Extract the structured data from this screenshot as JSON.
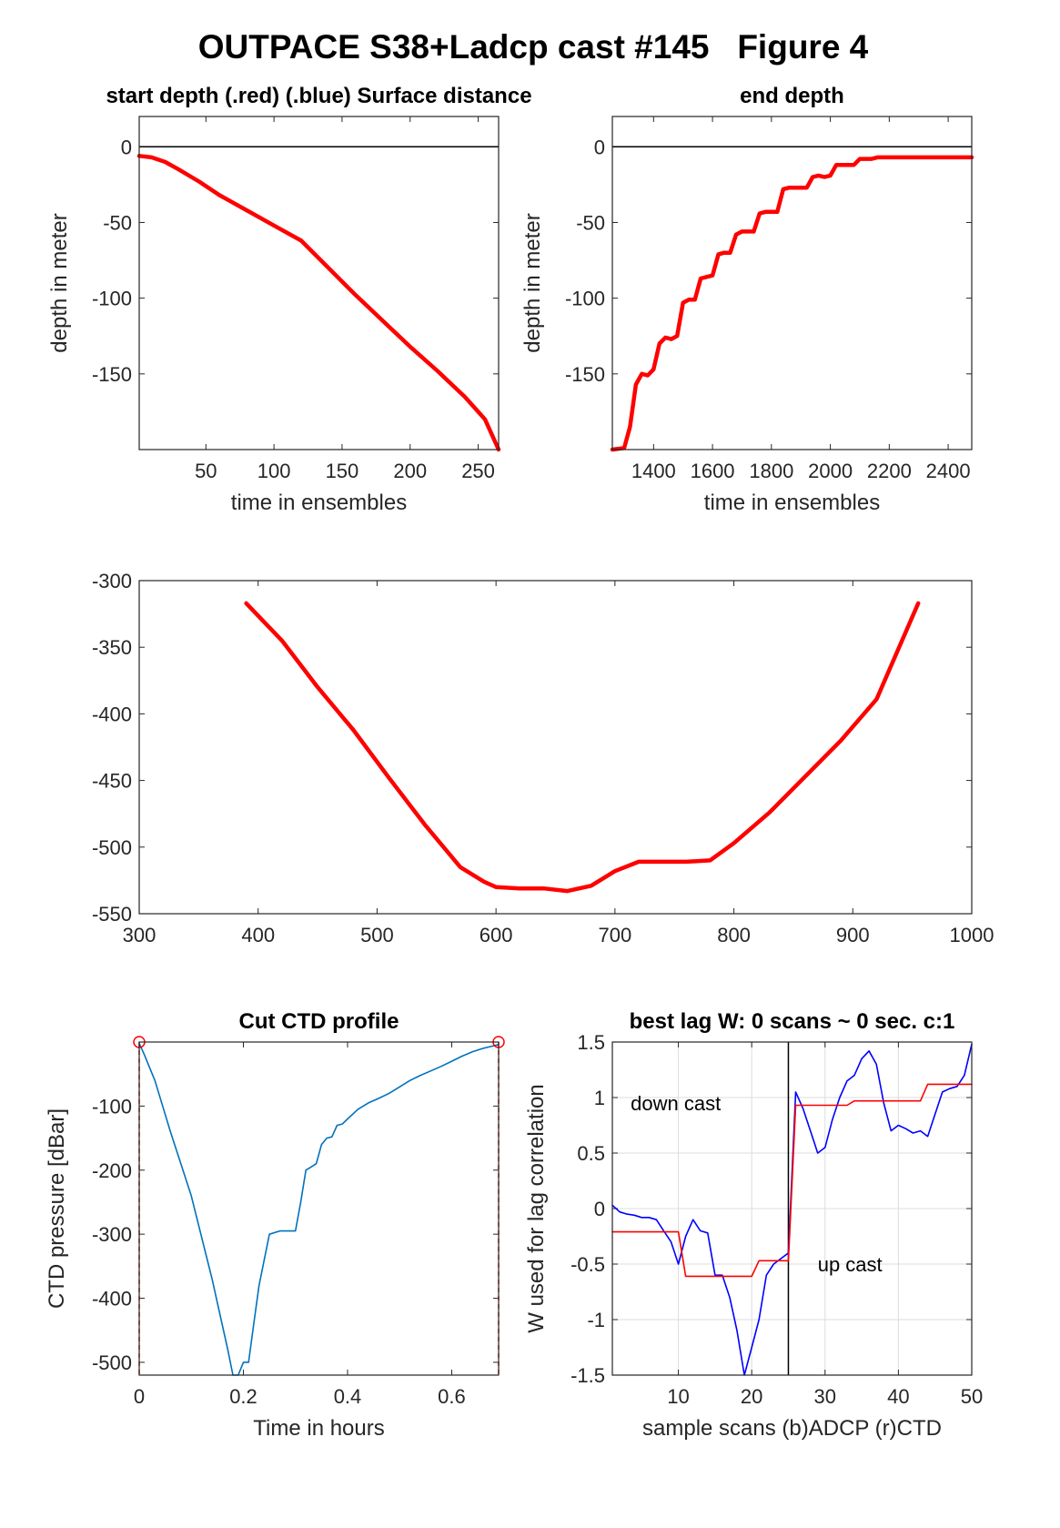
{
  "figure_title": "OUTPACE S38+Ladcp cast #145   Figure 4",
  "chart_data": [
    {
      "id": "start",
      "type": "line",
      "title": "start depth (.red) (.blue) Surface distance",
      "xlabel": "time in ensembles",
      "ylabel": "depth in meter",
      "xlim": [
        1,
        265
      ],
      "ylim": [
        -200,
        20
      ],
      "xticks": [
        50,
        100,
        150,
        200,
        250
      ],
      "yticks": [
        0,
        -50,
        -100,
        -150
      ],
      "grid": false,
      "hlines": [
        {
          "y": 0,
          "color": "#000000"
        }
      ],
      "series": [
        {
          "color": "#ff0000",
          "x": [
            1,
            10,
            20,
            30,
            45,
            60,
            80,
            100,
            120,
            140,
            160,
            180,
            200,
            220,
            240,
            255,
            265
          ],
          "y": [
            -6,
            -7,
            -10,
            -15,
            -23,
            -32,
            -42,
            -52,
            -62,
            -80,
            -98,
            -115,
            -132,
            -148,
            -165,
            -180,
            -200
          ]
        }
      ]
    },
    {
      "id": "end",
      "type": "line",
      "title": "end depth",
      "xlabel": "time in ensembles",
      "ylabel": "depth in meter",
      "xlim": [
        1260,
        2480
      ],
      "ylim": [
        -200,
        20
      ],
      "xticks": [
        1400,
        1600,
        1800,
        2000,
        2200,
        2400
      ],
      "yticks": [
        0,
        -50,
        -100,
        -150
      ],
      "grid": false,
      "hlines": [
        {
          "y": 0,
          "color": "#000000"
        }
      ],
      "series": [
        {
          "color": "#ff0000",
          "x": [
            1260,
            1300,
            1320,
            1340,
            1360,
            1380,
            1400,
            1420,
            1440,
            1460,
            1480,
            1500,
            1520,
            1540,
            1560,
            1580,
            1600,
            1620,
            1640,
            1660,
            1680,
            1700,
            1720,
            1740,
            1760,
            1780,
            1800,
            1820,
            1840,
            1860,
            1880,
            1900,
            1920,
            1940,
            1960,
            1980,
            2000,
            2020,
            2040,
            2060,
            2080,
            2100,
            2120,
            2140,
            2160,
            2180,
            2200,
            2220,
            2240,
            2260,
            2280,
            2300,
            2320,
            2340,
            2360,
            2380,
            2400,
            2420,
            2440,
            2460,
            2480
          ],
          "y": [
            -200,
            -199,
            -185,
            -157,
            -150,
            -151,
            -147,
            -130,
            -126,
            -127,
            -125,
            -103,
            -101,
            -101,
            -87,
            -86,
            -85,
            -71,
            -70,
            -70,
            -58,
            -56,
            -56,
            -56,
            -44,
            -43,
            -43,
            -43,
            -28,
            -27,
            -27,
            -27,
            -27,
            -20,
            -19,
            -20,
            -19,
            -12,
            -12,
            -12,
            -12,
            -8,
            -8,
            -8,
            -7,
            -7,
            -7,
            -7,
            -7,
            -7,
            -7,
            -7,
            -7,
            -7,
            -7,
            -7,
            -7,
            -7,
            -7,
            -7,
            -7
          ]
        }
      ]
    },
    {
      "id": "middle",
      "type": "line",
      "title": "",
      "xlabel": "",
      "ylabel": "",
      "xlim": [
        300,
        1000
      ],
      "ylim": [
        -550,
        -300
      ],
      "xticks": [
        300,
        400,
        500,
        600,
        700,
        800,
        900,
        1000
      ],
      "yticks": [
        -300,
        -350,
        -400,
        -450,
        -500,
        -550
      ],
      "grid": false,
      "series": [
        {
          "color": "#ff0000",
          "x": [
            390,
            420,
            450,
            480,
            510,
            540,
            570,
            590,
            600,
            620,
            640,
            660,
            680,
            700,
            720,
            740,
            760,
            780,
            800,
            830,
            860,
            890,
            920,
            955
          ],
          "y": [
            -317,
            -345,
            -380,
            -412,
            -448,
            -483,
            -515,
            -526,
            -530,
            -531,
            -531,
            -533,
            -529,
            -518,
            -511,
            -511,
            -511,
            -510,
            -497,
            -474,
            -447,
            -420,
            -389,
            -317
          ]
        }
      ]
    },
    {
      "id": "ctd",
      "type": "line",
      "title": "Cut CTD profile",
      "xlabel": "Time in hours",
      "ylabel": "CTD pressure [dBar]",
      "xlim": [
        0,
        0.69
      ],
      "ylim": [
        -520,
        0
      ],
      "xticks": [
        0,
        0.2,
        0.4,
        0.6
      ],
      "ytick_values": [
        -100,
        -200,
        -300,
        -400,
        -500
      ],
      "grid": false,
      "markers": [
        {
          "x": 0.0,
          "y": 0,
          "color": "#ff0000"
        },
        {
          "x": 0.69,
          "y": 0,
          "color": "#ff0000"
        }
      ],
      "vlines_dashed": [
        {
          "x": 0.0,
          "color": "#ff0000"
        },
        {
          "x": 0.69,
          "color": "#ff0000"
        }
      ],
      "series": [
        {
          "color": "#0072bd",
          "x": [
            0,
            0.01,
            0.03,
            0.06,
            0.1,
            0.14,
            0.17,
            0.18,
            0.19,
            0.2,
            0.21,
            0.22,
            0.23,
            0.25,
            0.27,
            0.28,
            0.3,
            0.31,
            0.32,
            0.33,
            0.34,
            0.35,
            0.36,
            0.37,
            0.38,
            0.39,
            0.4,
            0.42,
            0.44,
            0.46,
            0.48,
            0.5,
            0.52,
            0.54,
            0.56,
            0.58,
            0.6,
            0.62,
            0.64,
            0.66,
            0.69
          ],
          "y": [
            -2,
            -20,
            -60,
            -140,
            -240,
            -370,
            -480,
            -520,
            -520,
            -500,
            -500,
            -440,
            -380,
            -300,
            -295,
            -295,
            -295,
            -250,
            -200,
            -195,
            -190,
            -160,
            -150,
            -148,
            -130,
            -128,
            -120,
            -105,
            -95,
            -88,
            -80,
            -70,
            -60,
            -52,
            -45,
            -38,
            -30,
            -22,
            -15,
            -10,
            -4
          ]
        }
      ]
    },
    {
      "id": "lag",
      "type": "line",
      "title": "best lag W: 0 scans ~ 0 sec.  c:1",
      "xlabel": "sample scans (b)ADCP (r)CTD",
      "ylabel": "W used for lag correlation",
      "xlim": [
        1,
        50
      ],
      "ylim": [
        -1.5,
        1.5
      ],
      "xticks": [
        10,
        20,
        30,
        40,
        50
      ],
      "yticks": [
        "1.5",
        "1",
        "0.5",
        "0",
        "-0.5",
        "-1",
        "-1.5"
      ],
      "grid": true,
      "vlines": [
        {
          "x": 25,
          "color": "#000000"
        }
      ],
      "annotations": [
        {
          "text": "down cast",
          "x": 3.5,
          "y": 0.95
        },
        {
          "text": "up cast",
          "x": 29,
          "y": -0.5
        }
      ],
      "series": [
        {
          "name": "(b)ADCP",
          "color": "#0000ff",
          "x": [
            1,
            2,
            3,
            4,
            5,
            6,
            7,
            8,
            9,
            10,
            11,
            12,
            13,
            14,
            15,
            16,
            17,
            18,
            19,
            20,
            21,
            22,
            23,
            24,
            25,
            26,
            27,
            28,
            29,
            30,
            31,
            32,
            33,
            34,
            35,
            36,
            37,
            38,
            39,
            40,
            41,
            42,
            43,
            44,
            45,
            46,
            47,
            48,
            49,
            50
          ],
          "y": [
            0.03,
            -0.03,
            -0.05,
            -0.06,
            -0.08,
            -0.08,
            -0.1,
            -0.2,
            -0.3,
            -0.5,
            -0.25,
            -0.1,
            -0.2,
            -0.22,
            -0.6,
            -0.6,
            -0.8,
            -1.1,
            -1.5,
            -1.25,
            -1.0,
            -0.6,
            -0.5,
            -0.45,
            -0.4,
            1.05,
            0.9,
            0.7,
            0.5,
            0.55,
            0.8,
            1.0,
            1.15,
            1.2,
            1.35,
            1.42,
            1.3,
            0.95,
            0.7,
            0.75,
            0.72,
            0.68,
            0.7,
            0.65,
            0.85,
            1.05,
            1.08,
            1.1,
            1.2,
            1.48
          ]
        },
        {
          "name": "(r)CTD",
          "color": "#ff0000",
          "x": [
            1,
            10,
            11,
            20,
            21,
            25,
            26,
            33,
            34,
            43,
            44,
            50
          ],
          "y": [
            -0.21,
            -0.21,
            -0.61,
            -0.61,
            -0.47,
            -0.47,
            0.93,
            0.93,
            0.97,
            0.97,
            1.12,
            1.12
          ]
        }
      ]
    }
  ]
}
